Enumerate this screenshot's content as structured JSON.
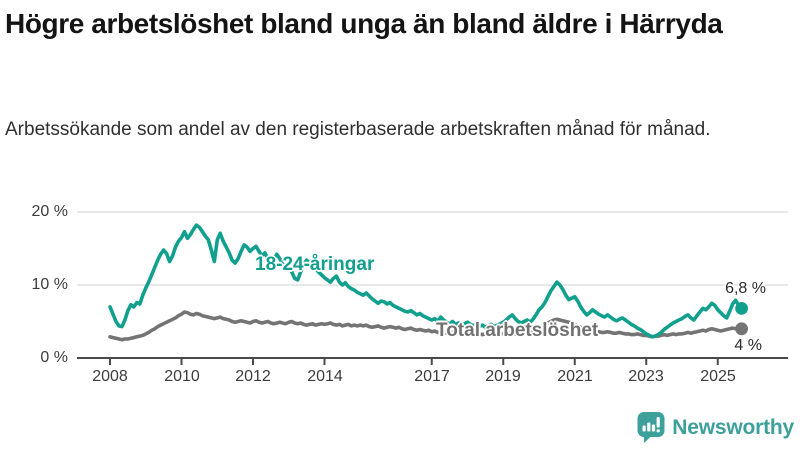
{
  "header": {
    "title": "Högre arbetslöshet bland unga än bland äldre i Härryda",
    "subtitle": "Arbetssökande som andel av den registerbaserade arbetskraften månad för månad."
  },
  "chart_data": {
    "type": "line",
    "title": "Högre arbetslöshet bland unga än bland äldre i Härryda",
    "frequency": "monthly",
    "x_start": "2008-01",
    "x_end": "2025-09",
    "ylim": [
      0,
      20
    ],
    "grid": "horizontal",
    "y_gridlines": [
      10,
      20
    ],
    "y_tick_labels": [
      "20 %",
      "10 %",
      "0 %"
    ],
    "x_ticks": [
      "2008",
      "2010",
      "2012",
      "2014",
      "2017",
      "2019",
      "2021",
      "2023",
      "2025"
    ],
    "series": [
      {
        "name": "18-24-åringar",
        "label": "18-24-åringar",
        "color": "#12a08e",
        "end_label": "6,8 %",
        "end_value": 6.8,
        "values": [
          7.0,
          6.0,
          5.0,
          4.4,
          4.3,
          5.2,
          6.5,
          7.3,
          7.0,
          7.6,
          7.4,
          8.6,
          9.6,
          10.4,
          11.4,
          12.4,
          13.4,
          14.2,
          14.8,
          14.3,
          13.2,
          14.0,
          15.2,
          16.0,
          16.5,
          17.3,
          16.4,
          16.9,
          17.6,
          18.2,
          17.9,
          17.3,
          16.7,
          16.2,
          14.8,
          13.2,
          16.2,
          17.1,
          16.0,
          15.2,
          14.4,
          13.4,
          13.0,
          13.6,
          14.6,
          15.5,
          15.2,
          14.6,
          15.0,
          15.3,
          14.6,
          14.0,
          14.4,
          13.6,
          13.0,
          13.5,
          14.2,
          13.6,
          12.8,
          12.5,
          12.5,
          11.8,
          10.9,
          10.7,
          11.8,
          12.8,
          13.4,
          13.0,
          12.6,
          12.2,
          11.8,
          11.4,
          11.0,
          10.7,
          10.4,
          10.9,
          11.2,
          10.4,
          10.0,
          10.3,
          9.8,
          9.5,
          9.3,
          9.0,
          8.8,
          8.6,
          8.9,
          8.5,
          8.1,
          7.8,
          7.5,
          7.8,
          7.7,
          7.4,
          7.6,
          7.2,
          7.0,
          6.8,
          6.6,
          6.4,
          6.3,
          6.5,
          6.2,
          5.9,
          6.1,
          5.8,
          5.6,
          5.4,
          5.2,
          5.4,
          5.0,
          5.6,
          5.2,
          4.9,
          4.7,
          5.0,
          4.6,
          4.8,
          4.5,
          4.7,
          4.9,
          4.6,
          4.4,
          4.7,
          4.3,
          4.5,
          4.2,
          4.4,
          4.6,
          4.3,
          4.5,
          4.7,
          4.9,
          5.2,
          5.6,
          5.9,
          5.4,
          5.0,
          4.8,
          5.0,
          5.2,
          4.9,
          5.3,
          5.9,
          6.6,
          7.0,
          7.6,
          8.4,
          9.2,
          9.8,
          10.4,
          10.0,
          9.4,
          8.6,
          8.0,
          8.2,
          8.4,
          7.8,
          7.0,
          6.4,
          5.9,
          6.2,
          6.6,
          6.3,
          6.0,
          5.8,
          5.6,
          5.9,
          5.6,
          5.3,
          5.1,
          5.3,
          5.5,
          5.2,
          4.9,
          4.6,
          4.4,
          4.1,
          3.9,
          3.6,
          3.3,
          3.1,
          2.9,
          3.0,
          3.2,
          3.5,
          3.9,
          4.2,
          4.5,
          4.8,
          5.0,
          5.2,
          5.4,
          5.7,
          5.9,
          5.5,
          5.2,
          5.8,
          6.3,
          6.8,
          6.6,
          7.0,
          7.5,
          7.2,
          6.6,
          6.2,
          5.8,
          5.5,
          6.4,
          7.4,
          7.9,
          7.2,
          6.8
        ]
      },
      {
        "name": "Total arbetslöshet",
        "label": "Total arbetslöshet",
        "color": "#747474",
        "end_label": "4 %",
        "end_value": 4.0,
        "values": [
          2.9,
          2.8,
          2.7,
          2.6,
          2.5,
          2.6,
          2.6,
          2.7,
          2.8,
          2.9,
          3.0,
          3.1,
          3.3,
          3.5,
          3.8,
          4.0,
          4.3,
          4.5,
          4.7,
          4.9,
          5.1,
          5.3,
          5.5,
          5.8,
          6.0,
          6.3,
          6.2,
          6.0,
          5.9,
          6.1,
          6.0,
          5.8,
          5.7,
          5.6,
          5.5,
          5.4,
          5.5,
          5.6,
          5.4,
          5.3,
          5.2,
          5.0,
          4.9,
          5.0,
          5.1,
          5.0,
          4.9,
          4.8,
          5.0,
          5.1,
          4.9,
          4.8,
          4.9,
          5.0,
          4.8,
          4.7,
          4.8,
          4.9,
          4.8,
          4.7,
          4.9,
          5.0,
          4.8,
          4.7,
          4.8,
          4.6,
          4.5,
          4.6,
          4.7,
          4.5,
          4.6,
          4.7,
          4.6,
          4.7,
          4.8,
          4.6,
          4.5,
          4.6,
          4.4,
          4.5,
          4.6,
          4.4,
          4.5,
          4.4,
          4.5,
          4.4,
          4.5,
          4.3,
          4.2,
          4.3,
          4.4,
          4.2,
          4.1,
          4.2,
          4.3,
          4.2,
          4.1,
          4.2,
          4.0,
          3.9,
          4.0,
          4.1,
          3.9,
          3.8,
          3.9,
          3.8,
          3.7,
          3.8,
          3.6,
          3.7,
          3.5,
          3.6,
          3.5,
          3.4,
          3.5,
          3.6,
          3.5,
          3.4,
          3.5,
          3.4,
          3.5,
          3.4,
          3.3,
          3.4,
          3.3,
          3.2,
          3.3,
          3.4,
          3.3,
          3.2,
          3.3,
          3.4,
          3.3,
          3.4,
          3.5,
          3.4,
          3.3,
          3.4,
          3.5,
          3.4,
          3.5,
          3.6,
          3.7,
          3.8,
          4.0,
          4.2,
          4.5,
          4.8,
          5.0,
          5.2,
          5.3,
          5.2,
          5.1,
          5.0,
          4.9,
          4.8,
          4.6,
          4.4,
          4.2,
          4.0,
          3.9,
          3.8,
          3.7,
          3.6,
          3.6,
          3.5,
          3.5,
          3.6,
          3.5,
          3.4,
          3.4,
          3.5,
          3.4,
          3.3,
          3.3,
          3.2,
          3.2,
          3.3,
          3.2,
          3.1,
          3.1,
          3.0,
          2.9,
          3.0,
          3.0,
          3.1,
          3.2,
          3.1,
          3.2,
          3.3,
          3.2,
          3.3,
          3.3,
          3.4,
          3.5,
          3.4,
          3.5,
          3.6,
          3.7,
          3.8,
          3.7,
          3.9,
          4.0,
          3.9,
          3.8,
          3.7,
          3.8,
          3.9,
          4.0,
          4.1,
          4.0,
          3.9,
          4.0
        ]
      }
    ],
    "colors": {
      "axis": "#4a4a4a",
      "gridline": "#d9d9d9"
    }
  },
  "footer": {
    "brand": "Newsworthy",
    "brand_color": "#3da09b"
  }
}
